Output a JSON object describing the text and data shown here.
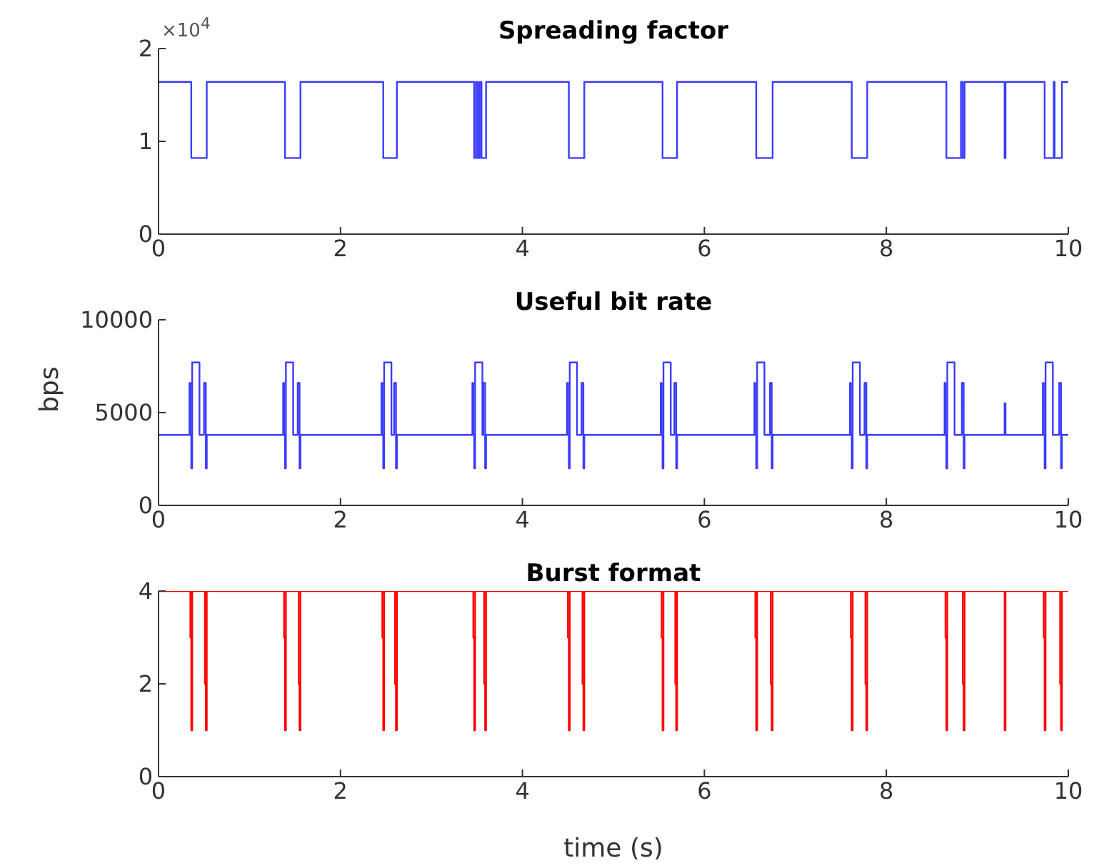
{
  "chart_data": [
    {
      "type": "step",
      "title": "Spreading factor",
      "annotations": [
        "×10$^{4}$"
      ],
      "xlim": [
        0,
        10
      ],
      "xticks": [
        0,
        2,
        4,
        6,
        8,
        10
      ],
      "ylim": [
        0,
        2
      ],
      "yticks": [
        0,
        1,
        2
      ],
      "series": [
        {
          "color": "#3b3bff",
          "x": [
            0,
            0.36,
            0.53,
            1.39,
            1.56,
            2.47,
            2.62,
            3.47,
            3.49,
            3.51,
            3.53,
            3.55,
            3.6,
            4.51,
            4.68,
            5.54,
            5.7,
            6.57,
            6.75,
            7.62,
            7.79,
            8.66,
            8.82,
            8.84,
            8.86,
            9.3,
            9.31,
            9.74,
            9.84,
            9.85,
            9.93,
            10
          ],
          "values": [
            1.64,
            0.82,
            1.64,
            0.82,
            1.64,
            0.82,
            1.64,
            0.82,
            1.64,
            0.82,
            1.64,
            0.82,
            1.64,
            0.82,
            1.64,
            0.82,
            1.64,
            0.82,
            1.64,
            0.82,
            1.64,
            0.82,
            1.64,
            0.82,
            1.64,
            0.82,
            1.64,
            0.82,
            1.64,
            0.82,
            1.64,
            1.64
          ]
        }
      ]
    },
    {
      "type": "step",
      "title": "Useful bit rate",
      "ylabel": "bps",
      "xlim": [
        0,
        10
      ],
      "xticks": [
        0,
        2,
        4,
        6,
        8,
        10
      ],
      "ylim": [
        0,
        10000
      ],
      "yticks": [
        0,
        5000,
        10000
      ],
      "series": [
        {
          "color": "#3b3bff",
          "x": [
            0,
            0.34,
            0.35,
            0.36,
            0.37,
            0.45,
            0.5,
            0.52,
            0.53,
            1.37,
            1.38,
            1.39,
            1.4,
            1.48,
            1.53,
            1.55,
            1.56,
            2.45,
            2.46,
            2.47,
            2.48,
            2.56,
            2.59,
            2.61,
            2.62,
            3.45,
            3.46,
            3.47,
            3.48,
            3.56,
            3.57,
            3.59,
            3.6,
            4.49,
            4.5,
            4.51,
            4.52,
            4.6,
            4.65,
            4.67,
            4.68,
            5.52,
            5.53,
            5.54,
            5.55,
            5.63,
            5.67,
            5.69,
            5.7,
            6.55,
            6.56,
            6.57,
            6.58,
            6.66,
            6.72,
            6.74,
            6.75,
            7.6,
            7.61,
            7.62,
            7.63,
            7.71,
            7.76,
            7.78,
            7.79,
            8.64,
            8.65,
            8.66,
            8.67,
            8.75,
            8.83,
            8.85,
            8.86,
            9.3,
            9.31,
            9.72,
            9.73,
            9.74,
            9.75,
            9.83,
            9.9,
            9.92,
            9.93,
            10
          ],
          "values": [
            3800,
            6600,
            3800,
            2000,
            7700,
            3800,
            6600,
            2000,
            3800,
            6600,
            3800,
            2000,
            7700,
            3800,
            6600,
            2000,
            3800,
            6600,
            3800,
            2000,
            7700,
            3800,
            6600,
            2000,
            3800,
            6600,
            3800,
            2000,
            7700,
            3800,
            6600,
            2000,
            3800,
            6600,
            3800,
            2000,
            7700,
            3800,
            6600,
            2000,
            3800,
            6600,
            3800,
            2000,
            7700,
            3800,
            6600,
            2000,
            3800,
            6600,
            3800,
            2000,
            7700,
            3800,
            6600,
            2000,
            3800,
            6600,
            3800,
            2000,
            7700,
            3800,
            6600,
            2000,
            3800,
            6600,
            3800,
            2000,
            7700,
            3800,
            6600,
            2000,
            3800,
            5500,
            3800,
            6600,
            3800,
            2000,
            7700,
            3800,
            6600,
            2000,
            3800,
            3800
          ]
        }
      ]
    },
    {
      "type": "step",
      "title": "Burst format",
      "xlabel": "time (s)",
      "xlim": [
        0,
        10
      ],
      "xticks": [
        0,
        2,
        4,
        6,
        8,
        10
      ],
      "ylim": [
        0,
        4
      ],
      "yticks": [
        0,
        2,
        4
      ],
      "series": [
        {
          "color": "#ff0000",
          "x": [
            0,
            0.35,
            0.36,
            0.37,
            0.51,
            0.52,
            0.53,
            1.38,
            1.39,
            1.4,
            1.54,
            1.55,
            1.56,
            2.46,
            2.47,
            2.48,
            2.6,
            2.61,
            2.62,
            3.46,
            3.47,
            3.48,
            3.58,
            3.59,
            3.6,
            4.5,
            4.51,
            4.52,
            4.66,
            4.67,
            4.68,
            5.53,
            5.54,
            5.55,
            5.68,
            5.69,
            5.7,
            6.56,
            6.57,
            6.58,
            6.73,
            6.74,
            6.75,
            7.61,
            7.62,
            7.63,
            7.77,
            7.78,
            7.79,
            8.65,
            8.66,
            8.67,
            8.84,
            8.85,
            8.86,
            9.3,
            9.31,
            9.73,
            9.74,
            9.75,
            9.91,
            9.92,
            9.93,
            10
          ],
          "values": [
            4,
            3,
            1,
            4,
            2,
            1,
            4,
            3,
            1,
            4,
            2,
            1,
            4,
            3,
            1,
            4,
            2,
            1,
            4,
            3,
            1,
            4,
            2,
            1,
            4,
            3,
            1,
            4,
            2,
            1,
            4,
            3,
            1,
            4,
            2,
            1,
            4,
            3,
            1,
            4,
            2,
            1,
            4,
            3,
            1,
            4,
            2,
            1,
            4,
            3,
            1,
            4,
            2,
            1,
            4,
            1,
            4,
            3,
            1,
            4,
            2,
            1,
            4,
            4
          ]
        }
      ]
    }
  ]
}
